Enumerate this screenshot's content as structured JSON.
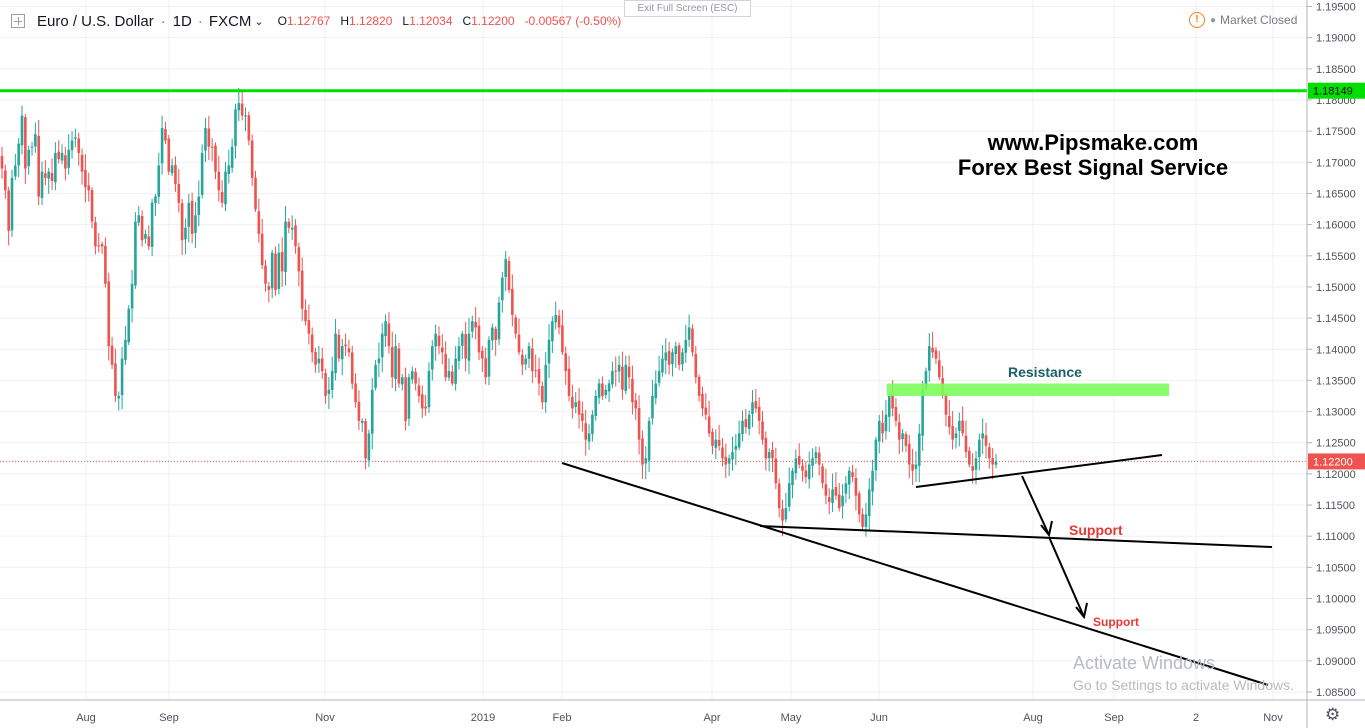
{
  "header": {
    "symbol": "Euro / U.S. Dollar",
    "interval": "1D",
    "exchange": "FXCM",
    "ohlc": [
      {
        "k": "O",
        "v": "1.12767"
      },
      {
        "k": "H",
        "v": "1.12820"
      },
      {
        "k": "L",
        "v": "1.12034"
      },
      {
        "k": "C",
        "v": "1.12200"
      }
    ],
    "change": "-0.00567 (-0.50%)"
  },
  "exit_fullscreen": "Exit Full Screen (ESC)",
  "market_status": "Market Closed",
  "watermark": {
    "line1": "www.Pipsmake.com",
    "line2": "Forex Best Signal Service"
  },
  "annotations": {
    "resistance": "Resistance",
    "support1": "Support",
    "support2": "Support"
  },
  "windows_notice": {
    "line1": "Activate Windows",
    "line2": "Go to Settings to activate Windows."
  },
  "colors": {
    "up": "#26a69a",
    "down": "#ef5350",
    "level_line": "#00e000",
    "resistance_zone": "#7cfc5c",
    "last_price": "#ef5350"
  },
  "chart_data": {
    "type": "candlestick",
    "ylim": [
      1.0845,
      1.1955
    ],
    "y_ticks": [
      "1.19500",
      "1.19000",
      "1.18500",
      "1.18000",
      "1.17500",
      "1.17000",
      "1.16500",
      "1.16000",
      "1.15500",
      "1.15000",
      "1.14500",
      "1.14000",
      "1.13500",
      "1.13000",
      "1.12500",
      "1.12000",
      "1.11500",
      "1.11000",
      "1.10500",
      "1.10000",
      "1.09500",
      "1.09000",
      "1.08500"
    ],
    "x_ticks": [
      "Aug",
      "Sep",
      "Nov",
      "2019",
      "Feb",
      "Apr",
      "May",
      "Jun",
      "Aug",
      "Sep",
      "2",
      "Nov"
    ],
    "horizontal_level": {
      "value": 1.18149,
      "label": "1.18149"
    },
    "last_price": {
      "value": 1.122,
      "label": "1.12200"
    },
    "resistance_zone": [
      1.1325,
      1.1345
    ],
    "closes": [
      1.169,
      1.1655,
      1.159,
      1.1675,
      1.1695,
      1.173,
      1.1775,
      1.169,
      1.172,
      1.1725,
      1.1745,
      1.1645,
      1.1685,
      1.1675,
      1.1685,
      1.167,
      1.1715,
      1.1705,
      1.1715,
      1.169,
      1.172,
      1.1735,
      1.174,
      1.1715,
      1.1685,
      1.166,
      1.1655,
      1.1605,
      1.1565,
      1.1565,
      1.1565,
      1.1505,
      1.1405,
      1.1375,
      1.1325,
      1.1325,
      1.1385,
      1.1415,
      1.1465,
      1.1505,
      1.1605,
      1.1615,
      1.1575,
      1.1585,
      1.1565,
      1.1635,
      1.1645,
      1.1695,
      1.1755,
      1.1735,
      1.1685,
      1.1695,
      1.1665,
      1.1635,
      1.1575,
      1.1595,
      1.1635,
      1.1585,
      1.1615,
      1.1645,
      1.1715,
      1.1755,
      1.1725,
      1.1725,
      1.1685,
      1.1655,
      1.1635,
      1.1685,
      1.1695,
      1.1725,
      1.1785,
      1.1795,
      1.1775,
      1.1775,
      1.1735,
      1.1675,
      1.1625,
      1.1585,
      1.1535,
      1.1505,
      1.1495,
      1.1555,
      1.1495,
      1.1555,
      1.1525,
      1.1605,
      1.1595,
      1.1595,
      1.1565,
      1.1525,
      1.1465,
      1.1445,
      1.1425,
      1.1395,
      1.1375,
      1.1385,
      1.1365,
      1.1325,
      1.1335,
      1.1365,
      1.1425,
      1.1385,
      1.1405,
      1.1405,
      1.1395,
      1.1345,
      1.1315,
      1.1285,
      1.1285,
      1.1225,
      1.1265,
      1.1335,
      1.1375,
      1.1385,
      1.1425,
      1.1445,
      1.1405,
      1.1355,
      1.1405,
      1.1345,
      1.1355,
      1.1285,
      1.1355,
      1.1365,
      1.1345,
      1.1325,
      1.1305,
      1.1305,
      1.1365,
      1.1405,
      1.1425,
      1.1405,
      1.1395,
      1.1355,
      1.1365,
      1.1345,
      1.1385,
      1.1405,
      1.1425,
      1.1385,
      1.1425,
      1.1445,
      1.1435,
      1.1395,
      1.1385,
      1.1355,
      1.1415,
      1.1435,
      1.1415,
      1.1475,
      1.1515,
      1.1545,
      1.1495,
      1.1455,
      1.1425,
      1.1395,
      1.1375,
      1.1385,
      1.1405,
      1.1365,
      1.1365,
      1.1345,
      1.1315,
      1.1375,
      1.1415,
      1.1445,
      1.1455,
      1.1435,
      1.1395,
      1.1365,
      1.1325,
      1.1305,
      1.1315,
      1.1295,
      1.1285,
      1.1255,
      1.1265,
      1.1295,
      1.1325,
      1.1345,
      1.1325,
      1.1335,
      1.1345,
      1.1365,
      1.1365,
      1.1375,
      1.1335,
      1.1375,
      1.1355,
      1.1315,
      1.1305,
      1.1255,
      1.1215,
      1.1225,
      1.1285,
      1.1325,
      1.1345,
      1.1365,
      1.1385,
      1.1395,
      1.1375,
      1.1395,
      1.1405,
      1.1375,
      1.1395,
      1.1415,
      1.1435,
      1.1395,
      1.1355,
      1.1325,
      1.1305,
      1.1295,
      1.1265,
      1.1245,
      1.1255,
      1.1245,
      1.1225,
      1.1215,
      1.1225,
      1.1235,
      1.1245,
      1.1265,
      1.1285,
      1.1275,
      1.1295,
      1.1315,
      1.1305,
      1.1285,
      1.1255,
      1.1225,
      1.1235,
      1.1225,
      1.1185,
      1.1145,
      1.1125,
      1.1145,
      1.1185,
      1.1205,
      1.1225,
      1.1215,
      1.1205,
      1.1195,
      1.1215,
      1.1225,
      1.1235,
      1.1215,
      1.1185,
      1.1165,
      1.1155,
      1.1175,
      1.1165,
      1.1145,
      1.1165,
      1.1185,
      1.1205,
      1.1195,
      1.1165,
      1.1135,
      1.1115,
      1.1135,
      1.1175,
      1.1205,
      1.1255,
      1.1285,
      1.1265,
      1.1295,
      1.1325,
      1.1305,
      1.1285,
      1.1255,
      1.1265,
      1.1245,
      1.1215,
      1.1205,
      1.1215,
      1.1265,
      1.1335,
      1.1365,
      1.1405,
      1.1395,
      1.1385,
      1.1355,
      1.1325,
      1.1295,
      1.1275,
      1.1255,
      1.1265,
      1.1285,
      1.1265,
      1.1235,
      1.1215,
      1.1205,
      1.1225,
      1.1255,
      1.1265,
      1.1245,
      1.1225,
      1.1215,
      1.122
    ]
  }
}
